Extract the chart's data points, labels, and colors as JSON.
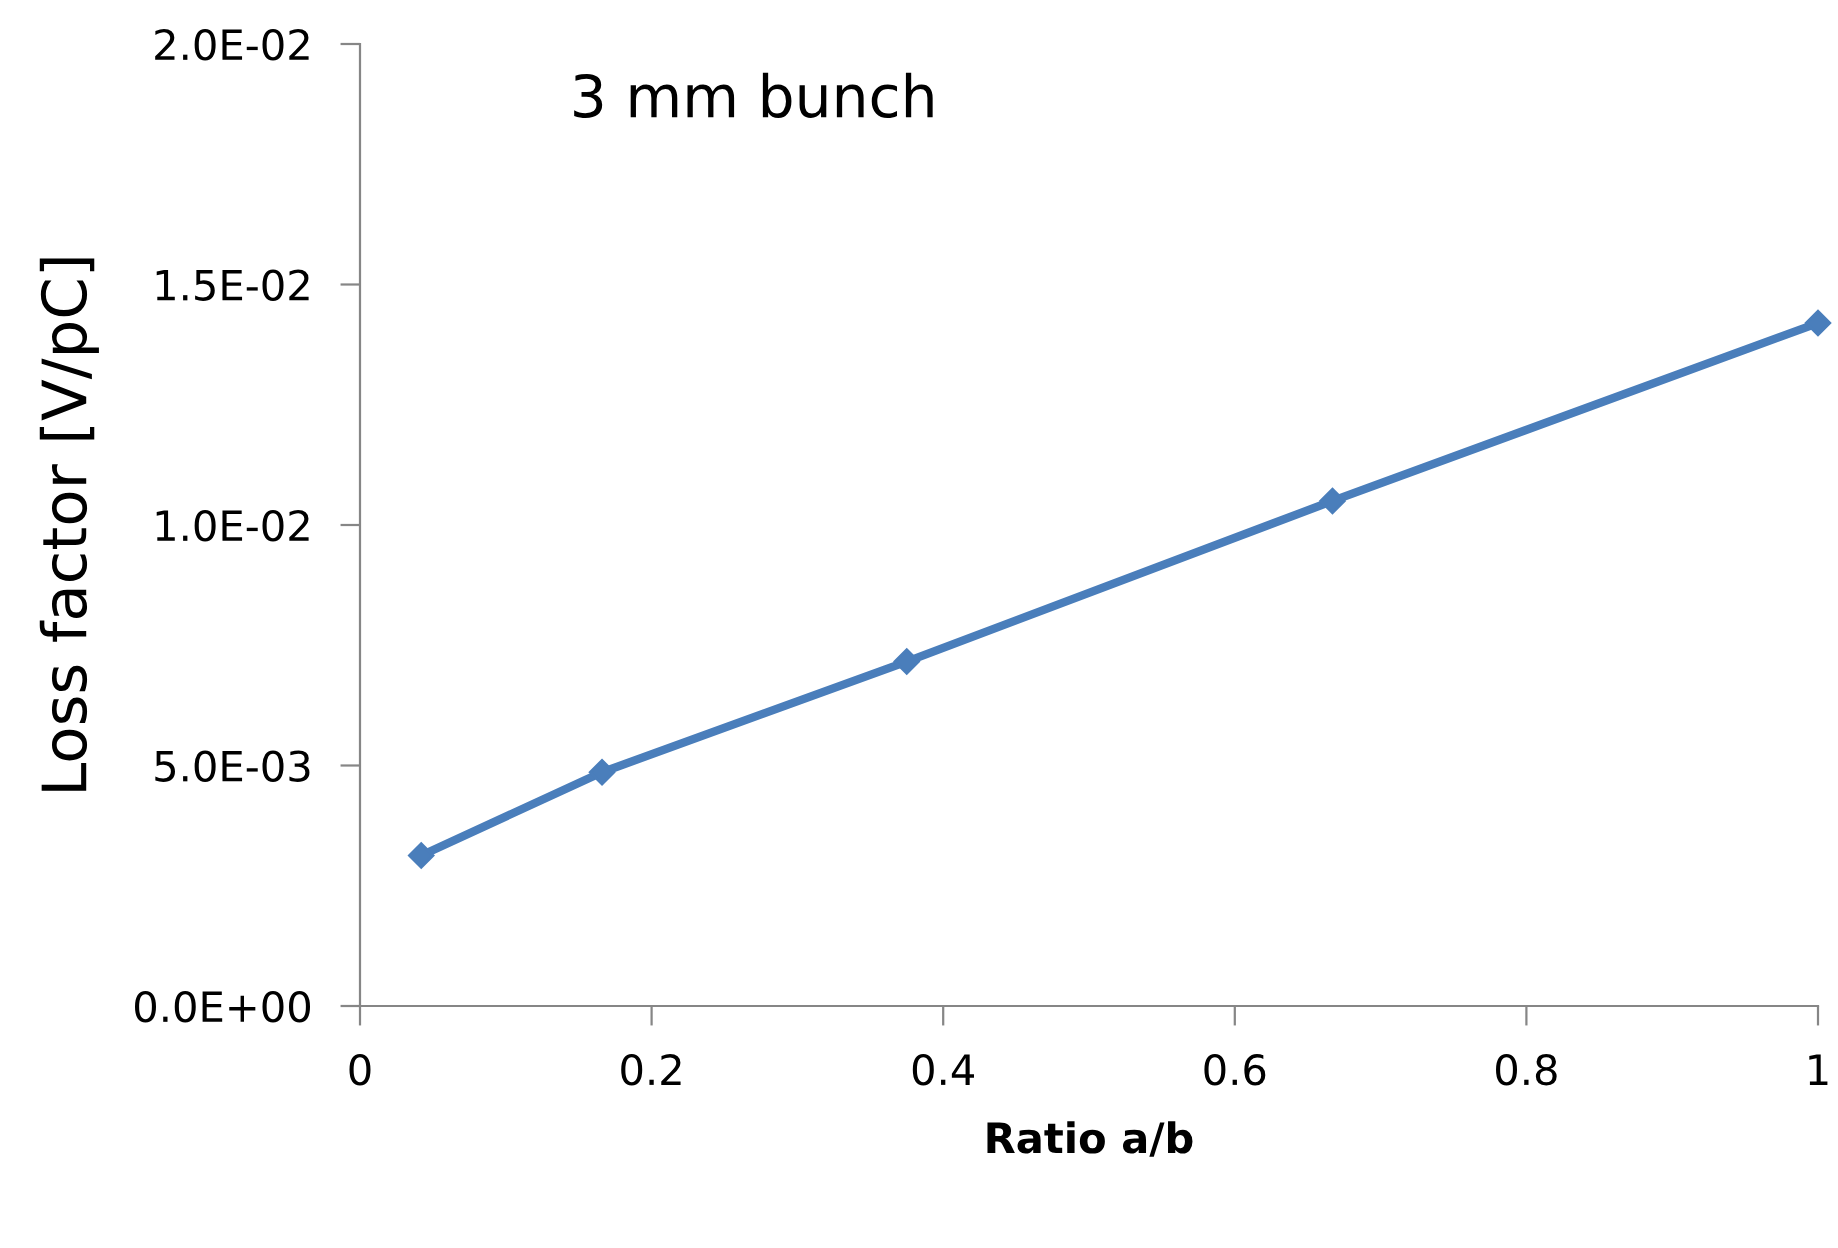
{
  "chart_data": {
    "type": "line",
    "title": "3 mm bunch",
    "xlabel": "Ratio a/b",
    "ylabel": "Loss factor [V/pC]",
    "x": [
      0.042,
      0.166,
      0.375,
      0.667,
      1.0
    ],
    "series": [
      {
        "color": "#4a7ebb",
        "values": [
          0.00313,
          0.00486,
          0.00716,
          0.0105,
          0.0142
        ]
      }
    ],
    "xlim": [
      0,
      1
    ],
    "xticks": [
      0,
      0.2,
      0.4,
      0.6,
      0.8,
      1
    ],
    "ylim": [
      0,
      0.02
    ],
    "yticks": [
      {
        "value": 0,
        "label": "0.0E+00"
      },
      {
        "value": 0.005,
        "label": "5.0E-03"
      },
      {
        "value": 0.01,
        "label": "1.0E-02"
      },
      {
        "value": 0.015,
        "label": "1.5E-02"
      },
      {
        "value": 0.02,
        "label": "2.0E-02"
      }
    ],
    "grid": false,
    "legend": false,
    "marker": "diamond",
    "line_style": "solid"
  }
}
